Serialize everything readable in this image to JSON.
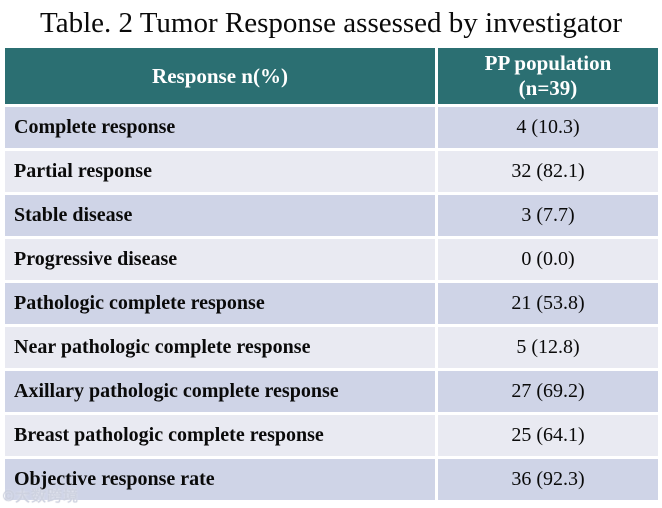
{
  "title": "Table. 2 Tumor Response assessed by investigator",
  "table": {
    "header": {
      "col1": "Response n(%)",
      "col2": "PP population\n(n=39)"
    },
    "rows": [
      {
        "label": "Complete response",
        "value": "4 (10.3)"
      },
      {
        "label": "Partial response",
        "value": "32 (82.1)"
      },
      {
        "label": "Stable disease",
        "value": "3 (7.7)"
      },
      {
        "label": "Progressive disease",
        "value": "0 (0.0)"
      },
      {
        "label": "Pathologic complete response",
        "value": "21 (53.8)"
      },
      {
        "label": "Near pathologic complete response",
        "value": "5 (12.8)"
      },
      {
        "label": "Axillary pathologic complete response",
        "value": "27 (69.2)"
      },
      {
        "label": "Breast pathologic complete response",
        "value": "25 (64.1)"
      },
      {
        "label": "Objective response rate",
        "value": "36 (92.3)"
      }
    ],
    "colors": {
      "header_bg": "#2b6f72",
      "header_text": "#ffffff",
      "row_odd_bg": "#cfd4e7",
      "row_even_bg": "#e9eaf2",
      "divider": "#ffffff",
      "text": "#0a0a0a"
    }
  },
  "watermark": "©大数跨境"
}
